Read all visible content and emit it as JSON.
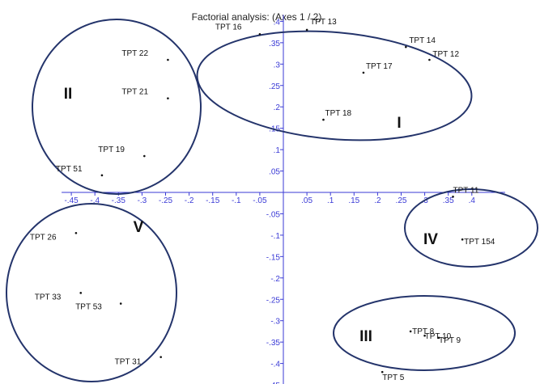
{
  "chart_data": {
    "type": "scatter",
    "title": "Factorial analysis: (Axes 1 / 2)",
    "xlabel": "",
    "ylabel": "",
    "xlim": [
      -0.45,
      0.45
    ],
    "ylim": [
      -0.45,
      0.4
    ],
    "xticks": [
      -0.45,
      -0.4,
      -0.35,
      -0.3,
      -0.25,
      -0.2,
      -0.15,
      -0.1,
      -0.05,
      0.05,
      0.1,
      0.15,
      0.2,
      0.25,
      0.3,
      0.35,
      0.4
    ],
    "xtick_labels": [
      "-.45",
      "-.4",
      "-.35",
      "-.3",
      "-.25",
      "-.2",
      "-.15",
      "-.1",
      "-.05",
      ".05",
      ".1",
      ".15",
      ".2",
      ".25",
      ".3",
      ".35",
      ".4"
    ],
    "yticks": [
      0.4,
      0.35,
      0.3,
      0.25,
      0.2,
      0.15,
      0.1,
      0.05,
      -0.05,
      -0.1,
      -0.15,
      -0.2,
      -0.25,
      -0.3,
      -0.35,
      -0.4,
      -0.45
    ],
    "ytick_labels": [
      ".4",
      ".35",
      ".3",
      ".25",
      ".2",
      ".15",
      ".1",
      ".05",
      "-.05",
      "-.1",
      "-.15",
      "-.2",
      "-.25",
      "-.3",
      "-.35",
      "-.4",
      "-.45"
    ],
    "grid": false,
    "axis_color": "#3a3ad6",
    "points": [
      {
        "label": "TPT 16",
        "x": -0.05,
        "y": 0.37
      },
      {
        "label": "TPT 13",
        "x": 0.05,
        "y": 0.38
      },
      {
        "label": "TPT 14",
        "x": 0.26,
        "y": 0.34
      },
      {
        "label": "TPT 12",
        "x": 0.31,
        "y": 0.31
      },
      {
        "label": "TPT 17",
        "x": 0.17,
        "y": 0.28
      },
      {
        "label": "TPT 18",
        "x": 0.085,
        "y": 0.17
      },
      {
        "label": "TPT 22",
        "x": -0.245,
        "y": 0.31
      },
      {
        "label": "TPT 21",
        "x": -0.245,
        "y": 0.22
      },
      {
        "label": "TPT 19",
        "x": -0.295,
        "y": 0.085
      },
      {
        "label": "TPT 51",
        "x": -0.385,
        "y": 0.04
      },
      {
        "label": "TPT 11",
        "x": 0.36,
        "y": -0.01
      },
      {
        "label": "TPT 154",
        "x": 0.38,
        "y": -0.11
      },
      {
        "label": "TPT 26",
        "x": -0.44,
        "y": -0.095
      },
      {
        "label": "TPT 33",
        "x": -0.43,
        "y": -0.235
      },
      {
        "label": "TPT 53",
        "x": -0.345,
        "y": -0.26
      },
      {
        "label": "TPT 31",
        "x": -0.26,
        "y": -0.385
      },
      {
        "label": "TPT 8",
        "x": 0.27,
        "y": -0.325
      },
      {
        "label": "TPT 10",
        "x": 0.3,
        "y": -0.335
      },
      {
        "label": "TPT 9",
        "x": 0.33,
        "y": -0.34
      },
      {
        "label": "TPT 5",
        "x": 0.21,
        "y": -0.42
      }
    ],
    "groups": [
      {
        "name": "I",
        "members": [
          "TPT 16",
          "TPT 13",
          "TPT 14",
          "TPT 12",
          "TPT 17",
          "TPT 18"
        ]
      },
      {
        "name": "II",
        "members": [
          "TPT 22",
          "TPT 21",
          "TPT 19",
          "TPT 51"
        ]
      },
      {
        "name": "III",
        "members": [
          "TPT 8",
          "TPT 10",
          "TPT 9",
          "TPT 5"
        ]
      },
      {
        "name": "IV",
        "members": [
          "TPT 11",
          "TPT 154"
        ]
      },
      {
        "name": "V",
        "members": [
          "TPT 26",
          "TPT 33",
          "TPT 53",
          "TPT 31"
        ]
      }
    ]
  }
}
